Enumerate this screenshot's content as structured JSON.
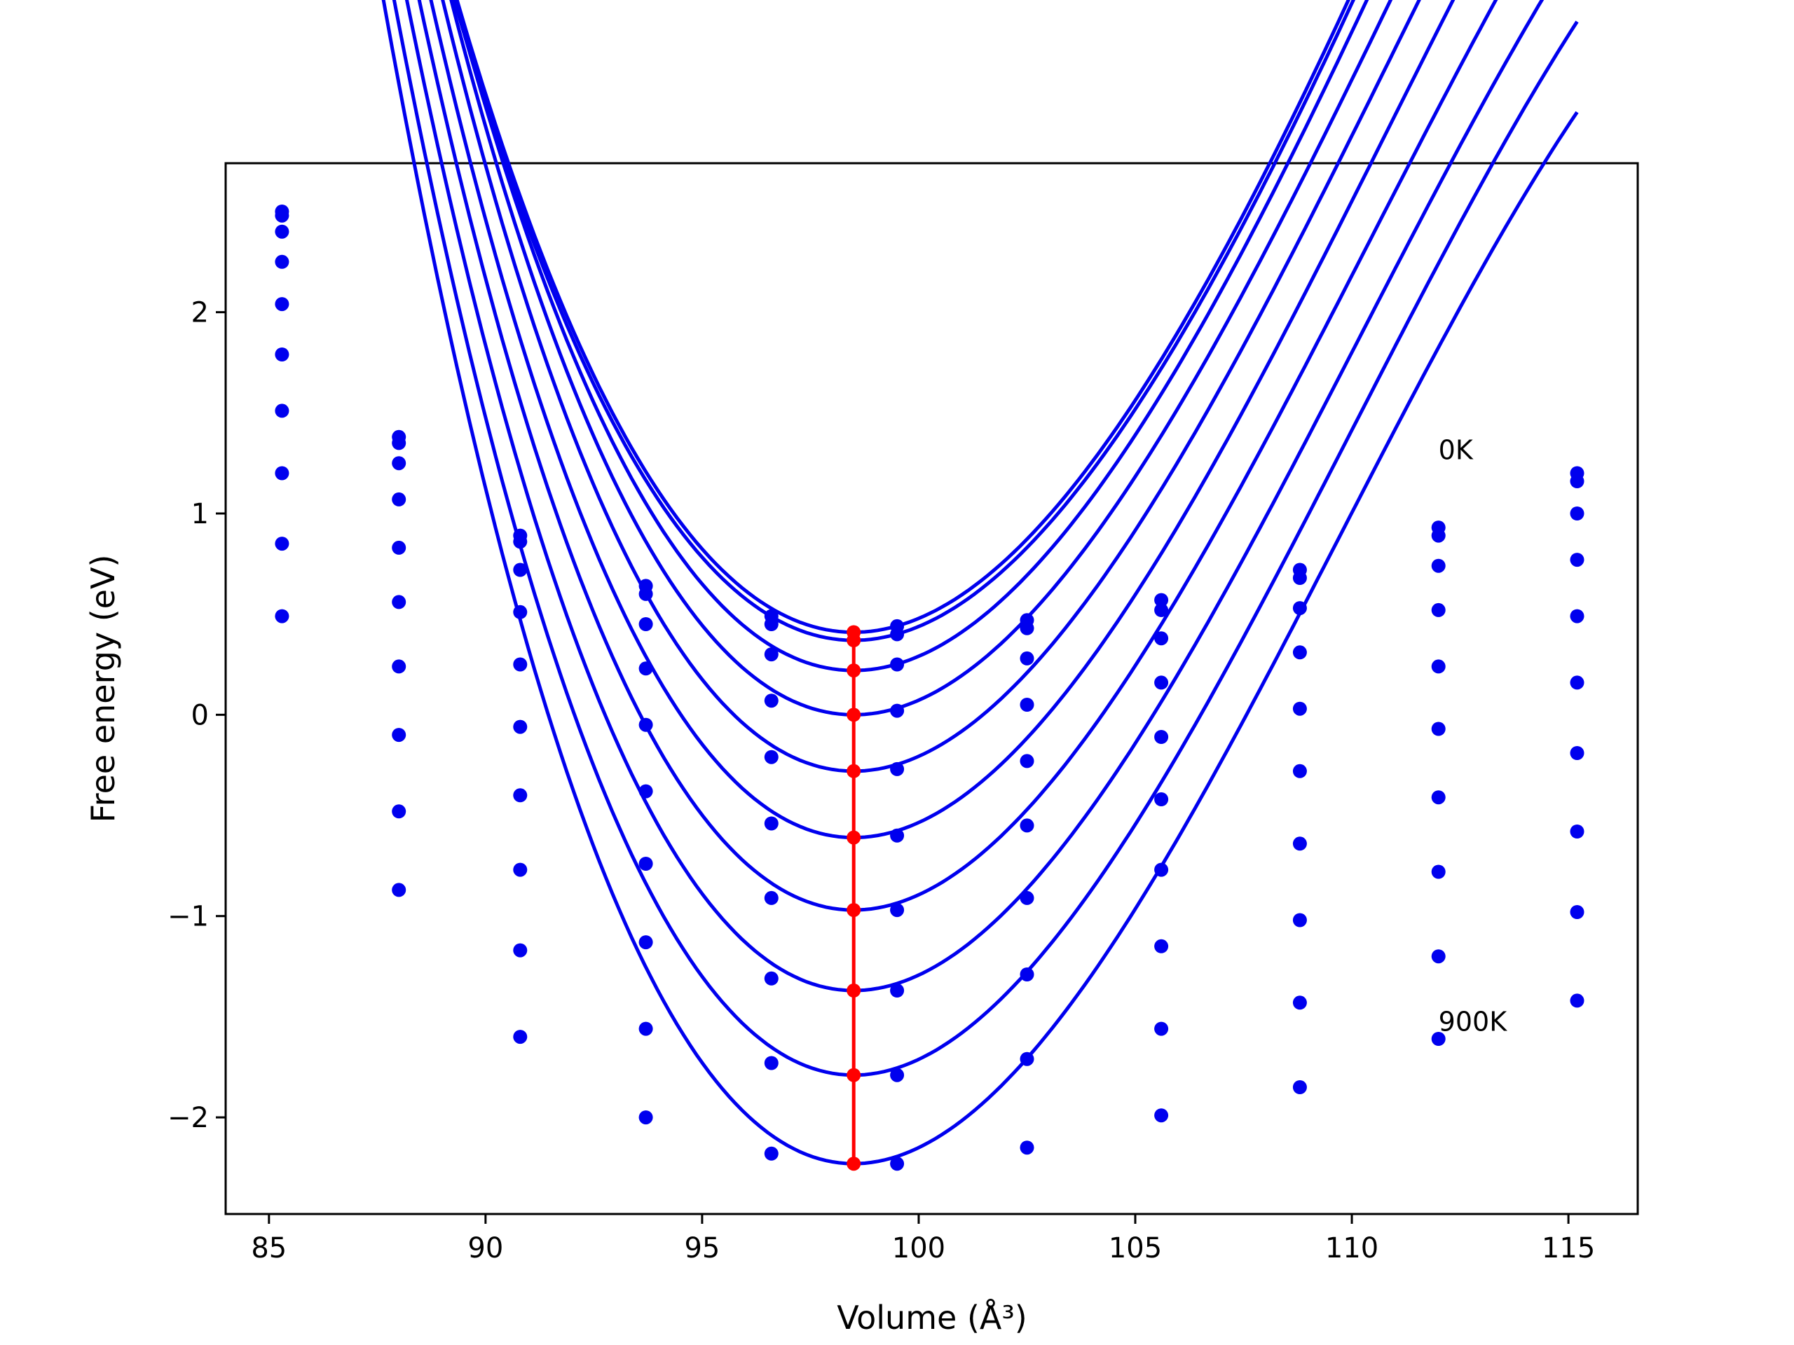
{
  "chart_data": {
    "type": "line",
    "xlabel": "Volume (Å³)",
    "ylabel": "Free energy (eV)",
    "xlim": [
      84,
      116.6
    ],
    "ylim": [
      -2.48,
      2.74
    ],
    "xticks": [
      85,
      90,
      95,
      100,
      105,
      110,
      115
    ],
    "yticks": [
      -2,
      -1,
      0,
      1,
      2
    ],
    "grid": false,
    "colors": {
      "curves": "#0000ee",
      "points": "#0000ee",
      "minimum": "#ff0000"
    },
    "x": [
      85.3,
      88.0,
      90.8,
      93.7,
      96.6,
      99.5,
      102.5,
      105.6,
      108.8,
      112.0,
      115.2
    ],
    "annotations": [
      {
        "text": "0K",
        "x": 112.0,
        "y": 1.27
      },
      {
        "text": "900K",
        "x": 112.0,
        "y": -1.57
      }
    ],
    "series": [
      {
        "points": [
          2.5,
          1.38,
          0.89,
          0.64,
          0.49,
          0.44,
          0.47,
          0.57,
          0.72,
          0.93,
          1.2
        ],
        "fit": {
          "vmin": 98.5,
          "fmin": 0.41,
          "a": 0.0315,
          "b": -0.00065
        }
      },
      {
        "points": [
          2.48,
          1.35,
          0.86,
          0.6,
          0.45,
          0.4,
          0.43,
          0.52,
          0.68,
          0.89,
          1.16
        ],
        "fit": {
          "vmin": 98.5,
          "fmin": 0.37,
          "a": 0.0314,
          "b": -0.00065
        }
      },
      {
        "points": [
          2.4,
          1.25,
          0.72,
          0.45,
          0.3,
          0.25,
          0.28,
          0.38,
          0.53,
          0.74,
          1.0
        ],
        "fit": {
          "vmin": 98.5,
          "fmin": 0.22,
          "a": 0.0325,
          "b": -0.00074
        }
      },
      {
        "points": [
          2.25,
          1.07,
          0.51,
          0.23,
          0.07,
          0.02,
          0.05,
          0.16,
          0.31,
          0.52,
          0.77
        ],
        "fit": {
          "vmin": 98.5,
          "fmin": 0.0,
          "a": 0.0334,
          "b": -0.00083
        }
      },
      {
        "points": [
          2.04,
          0.83,
          0.25,
          -0.05,
          -0.21,
          -0.27,
          -0.23,
          -0.11,
          0.03,
          0.24,
          0.49
        ],
        "fit": {
          "vmin": 98.5,
          "fmin": -0.28,
          "a": 0.0341,
          "b": -0.00089
        }
      },
      {
        "points": [
          1.79,
          0.56,
          -0.06,
          -0.38,
          -0.54,
          -0.6,
          -0.55,
          -0.42,
          -0.28,
          -0.07,
          0.16
        ],
        "fit": {
          "vmin": 98.5,
          "fmin": -0.61,
          "a": 0.0346,
          "b": -0.00093
        }
      },
      {
        "points": [
          1.51,
          0.24,
          -0.4,
          -0.74,
          -0.91,
          -0.97,
          -0.91,
          -0.77,
          -0.64,
          -0.41,
          -0.19
        ],
        "fit": {
          "vmin": 98.5,
          "fmin": -0.97,
          "a": 0.0351,
          "b": -0.00098
        }
      },
      {
        "points": [
          1.2,
          -0.1,
          -0.77,
          -1.13,
          -1.31,
          -1.37,
          -1.29,
          -1.15,
          -1.02,
          -0.78,
          -0.58
        ],
        "fit": {
          "vmin": 98.5,
          "fmin": -1.37,
          "a": 0.0357,
          "b": -0.00102
        }
      },
      {
        "points": [
          0.85,
          -0.48,
          -1.17,
          -1.56,
          -1.73,
          -1.79,
          -1.71,
          -1.56,
          -1.43,
          -1.2,
          -0.98
        ],
        "fit": {
          "vmin": 98.5,
          "fmin": -1.79,
          "a": 0.0363,
          "b": -0.00105
        }
      },
      {
        "points": [
          0.49,
          -0.87,
          -1.6,
          -2.0,
          -2.18,
          -2.23,
          -2.15,
          -1.99,
          -1.85,
          -1.61,
          -1.42
        ],
        "fit": {
          "vmin": 98.5,
          "fmin": -2.23,
          "a": 0.0371,
          "b": -0.0011
        }
      }
    ],
    "minimum_line": {
      "x": [
        98.5,
        98.5,
        98.5,
        98.5,
        98.5,
        98.5,
        98.5,
        98.5,
        98.5,
        98.5
      ],
      "y": [
        0.41,
        0.37,
        0.22,
        0.0,
        -0.28,
        -0.61,
        -0.97,
        -1.37,
        -1.79,
        -2.23
      ]
    }
  }
}
